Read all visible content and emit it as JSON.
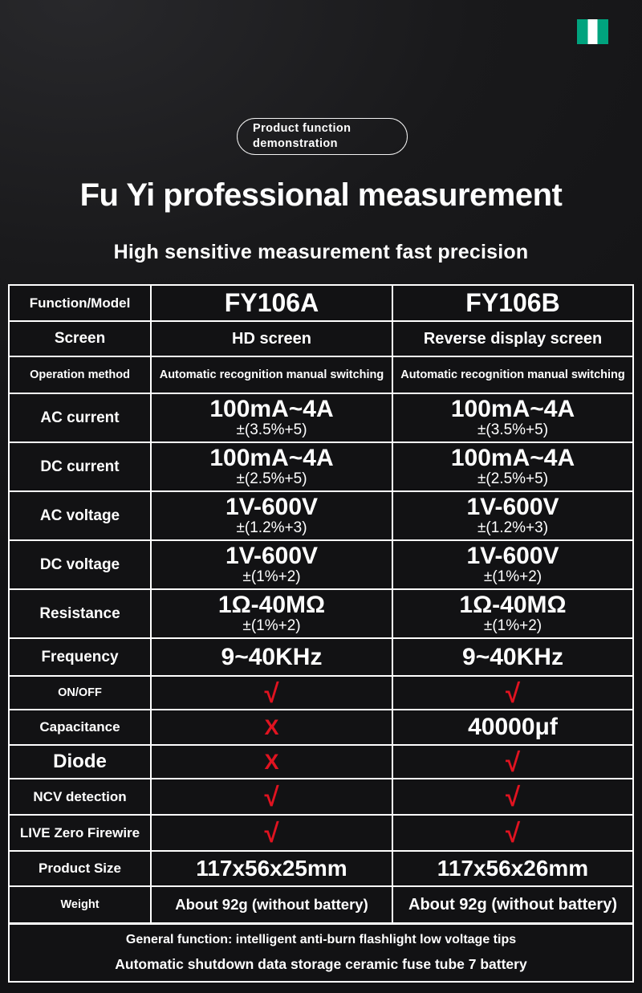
{
  "page": {
    "badge": {
      "line1": "Product function",
      "line2": "demonstration"
    },
    "title": "Fu Yi professional measurement",
    "subtitle": "High sensitive measurement fast precision",
    "colors": {
      "accent_red": "#e01320",
      "flag_green": "#00a37e",
      "background": "#121214",
      "table_border": "#ffffff"
    }
  },
  "table": {
    "header": {
      "label": "Function/Model",
      "a": "FY106A",
      "b": "FY106B"
    },
    "rows": [
      {
        "label": "Screen",
        "a": "HD screen",
        "b": "Reverse display screen"
      },
      {
        "label": "Operation method",
        "a": "Automatic recognition manual switching",
        "b": "Automatic recognition manual switching"
      },
      {
        "label": "AC current",
        "a": "100mA~4A",
        "a_sub": "±(3.5%+5)",
        "b": "100mA~4A",
        "b_sub": "±(3.5%+5)"
      },
      {
        "label": "DC current",
        "a": "100mA~4A",
        "a_sub": "±(2.5%+5)",
        "b": "100mA~4A",
        "b_sub": "±(2.5%+5)"
      },
      {
        "label": "AC voltage",
        "a": "1V-600V",
        "a_sub": "±(1.2%+3)",
        "b": "1V-600V",
        "b_sub": "±(1.2%+3)"
      },
      {
        "label": "DC voltage",
        "a": "1V-600V",
        "a_sub": "±(1%+2)",
        "b": "1V-600V",
        "b_sub": "±(1%+2)"
      },
      {
        "label": "Resistance",
        "a": "1Ω-40MΩ",
        "a_sub": "±(1%+2)",
        "b": "1Ω-40MΩ",
        "b_sub": "±(1%+2)"
      },
      {
        "label": "Frequency",
        "a": "9~40KHz",
        "b": "9~40KHz"
      },
      {
        "label": "ON/OFF",
        "a": "√",
        "b": "√"
      },
      {
        "label": "Capacitance",
        "a": "X",
        "b": "40000μf"
      },
      {
        "label": "Diode",
        "a": "X",
        "b": "√"
      },
      {
        "label": "NCV detection",
        "a": "√",
        "b": "√"
      },
      {
        "label": "LIVE Zero Firewire",
        "a": "√",
        "b": "√"
      },
      {
        "label": "Product Size",
        "a": "117x56x25mm",
        "b": "117x56x26mm"
      },
      {
        "label": "Weight",
        "a": "About 92g (without battery)",
        "b": "About 92g (without battery)"
      }
    ]
  },
  "footer": {
    "line1": "General function: intelligent anti-burn flashlight low voltage tips",
    "line2": "Automatic shutdown data storage ceramic fuse tube 7 battery"
  }
}
